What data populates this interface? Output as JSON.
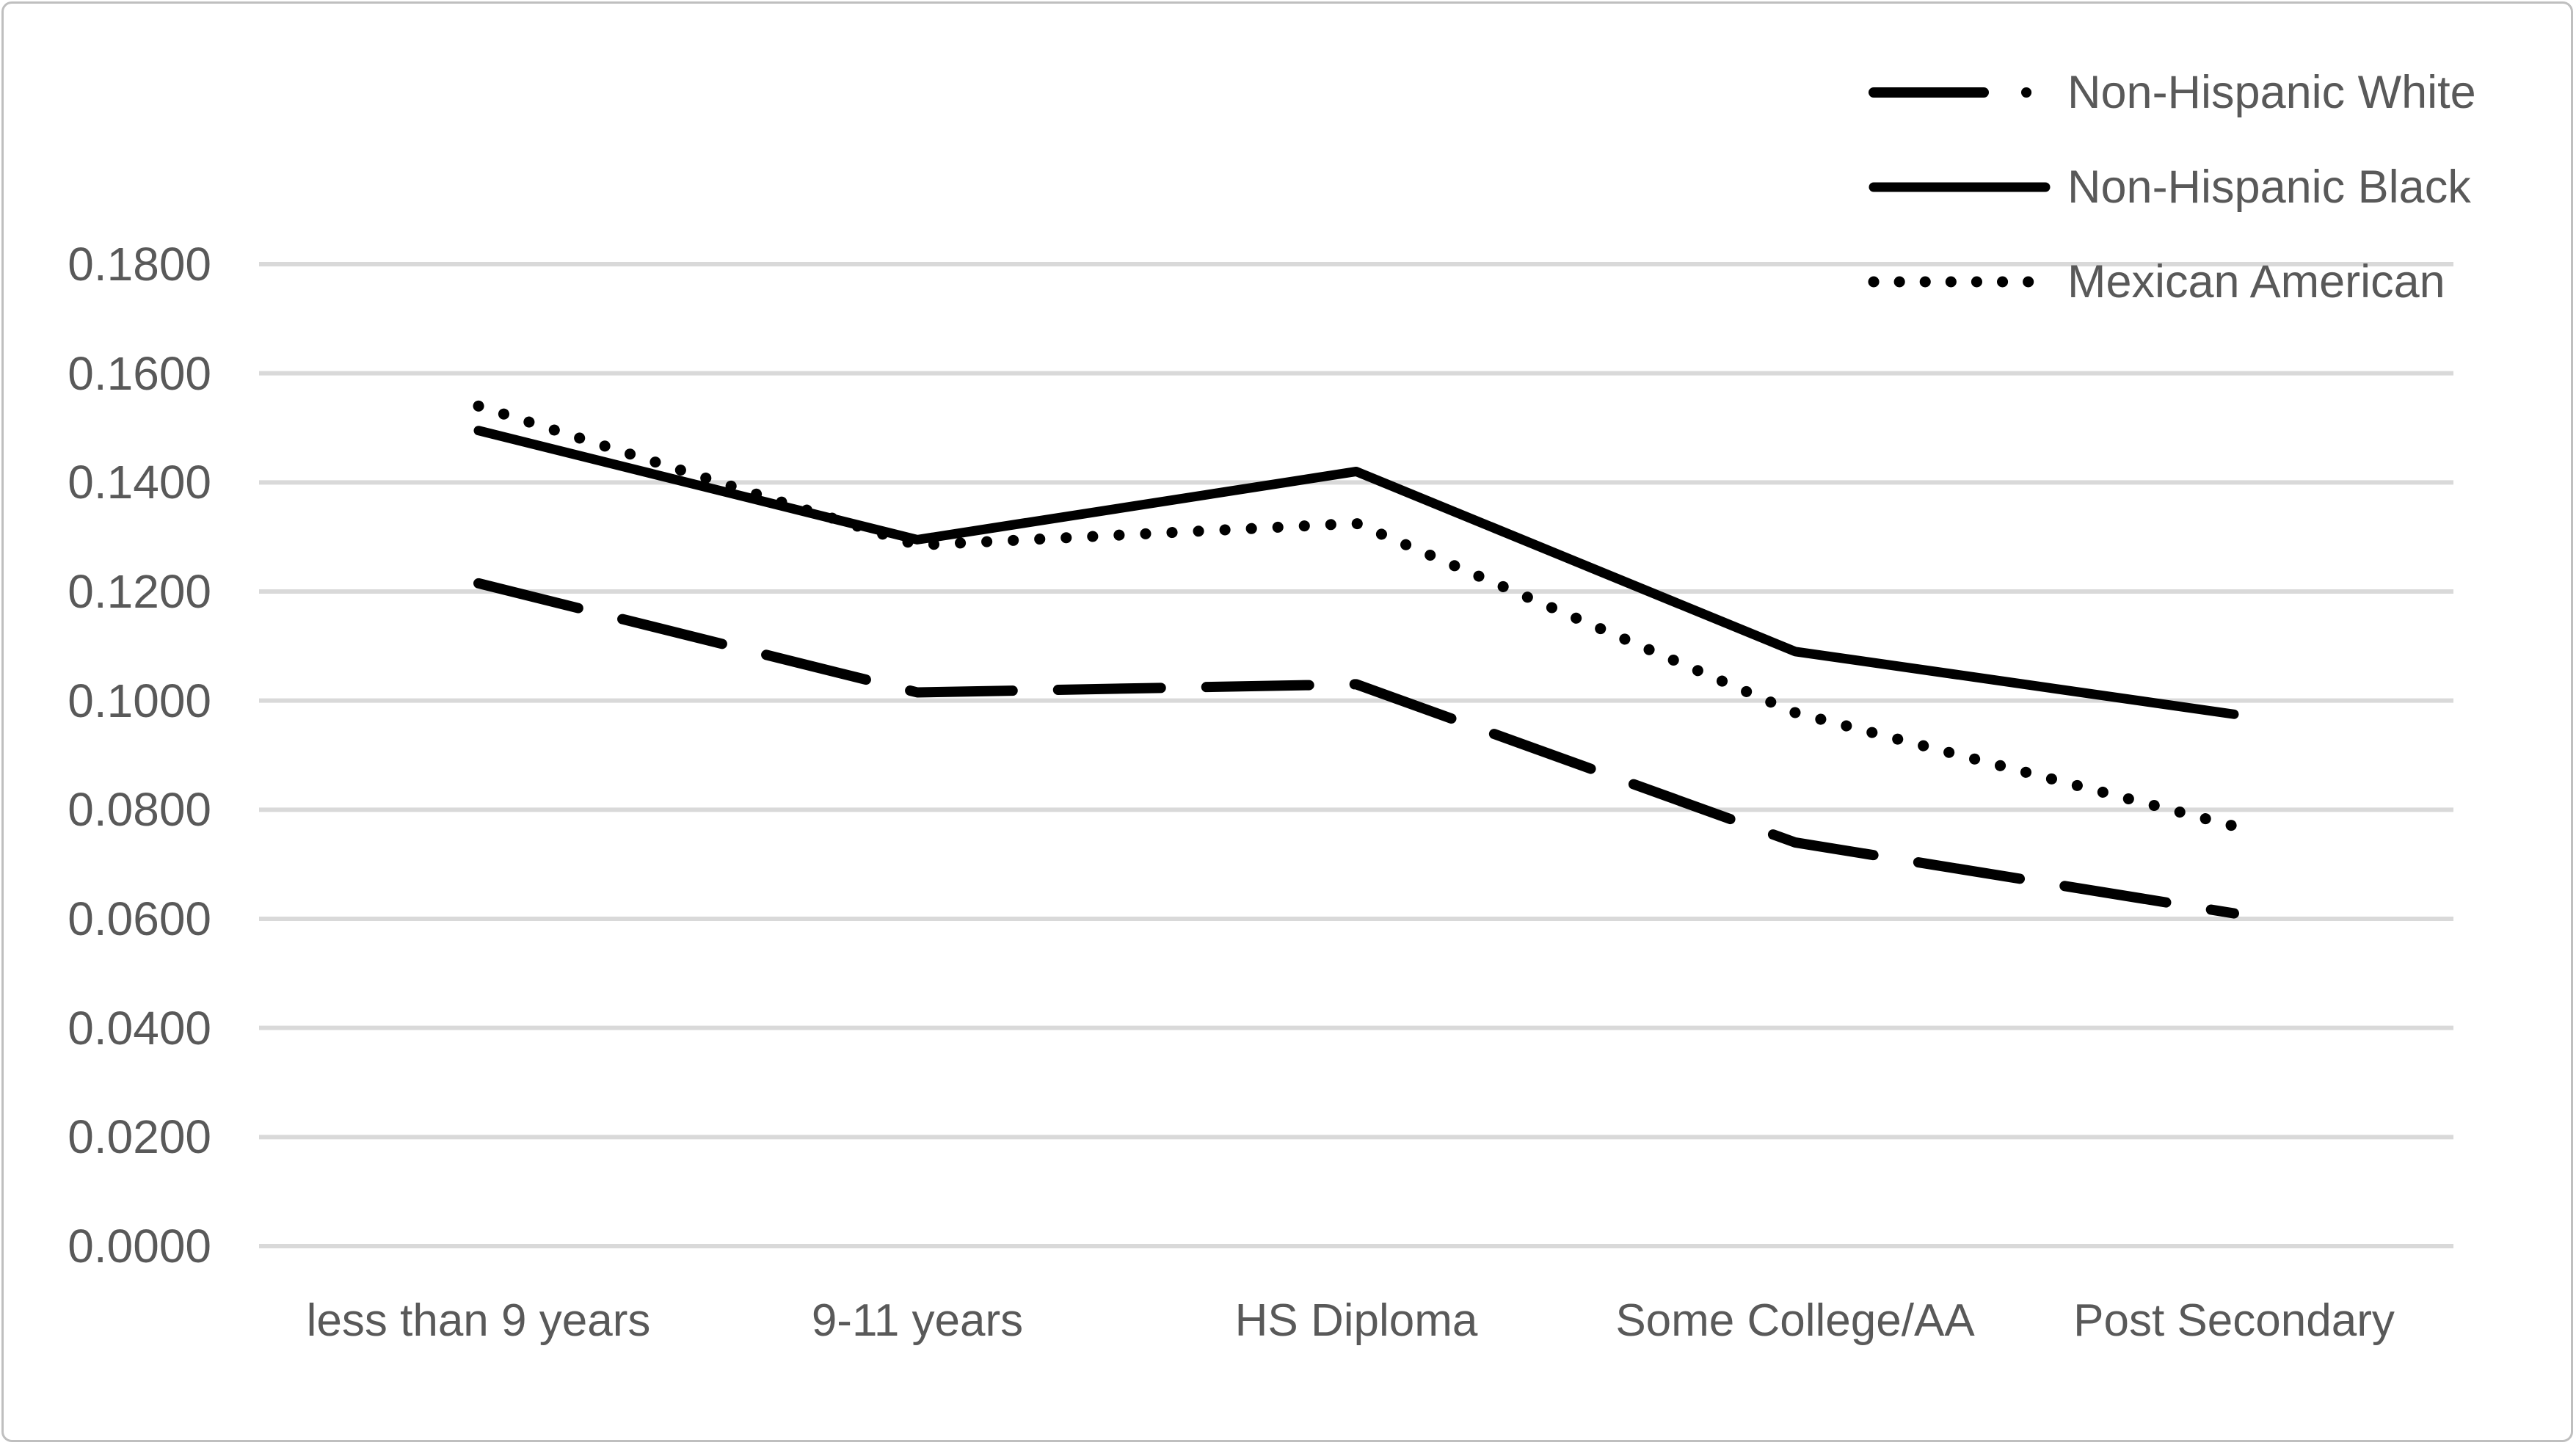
{
  "figure": {
    "background_color": "#ffffff",
    "border_color": "#bfbfbf",
    "text_color": "#595959",
    "gridline_color": "#d9d9d9",
    "series_color": "#000000"
  },
  "chart_data": {
    "type": "line",
    "title": "",
    "xlabel": "",
    "ylabel": "",
    "categories": [
      "less than 9 years",
      "9-11 years",
      "HS Diploma",
      "Some College/AA",
      "Post Secondary"
    ],
    "series": [
      {
        "name": "Non-Hispanic White",
        "style": "dashed",
        "color": "#000000",
        "values": [
          0.1215,
          0.1015,
          0.103,
          0.074,
          0.061
        ]
      },
      {
        "name": "Non-Hispanic Black",
        "style": "solid",
        "color": "#000000",
        "values": [
          0.1495,
          0.1295,
          0.142,
          0.109,
          0.0975
        ]
      },
      {
        "name": "Mexican American",
        "style": "dotted",
        "color": "#000000",
        "values": [
          0.154,
          0.1285,
          0.1325,
          0.0978,
          0.077
        ]
      }
    ],
    "y_axis": {
      "min": 0.0,
      "max": 0.18,
      "step": 0.02,
      "tick_labels": [
        "0.0000",
        "0.0200",
        "0.0400",
        "0.0600",
        "0.0800",
        "0.1000",
        "0.1200",
        "0.1400",
        "0.1600",
        "0.1800"
      ]
    },
    "grid": true,
    "legend_position": "top-right",
    "legend_entries": [
      "Non-Hispanic White",
      "Non-Hispanic Black",
      "Mexican American"
    ]
  }
}
